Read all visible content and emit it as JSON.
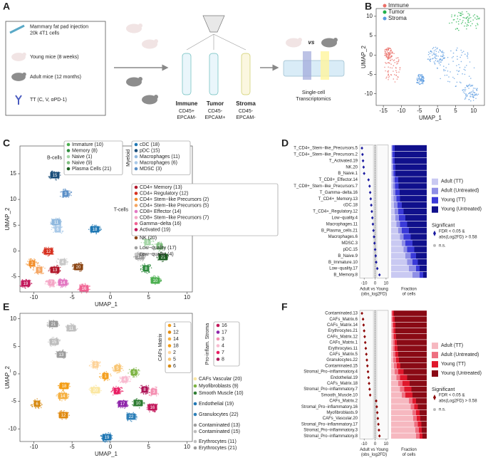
{
  "panel_labels": [
    "A",
    "B",
    "C",
    "D",
    "E",
    "F"
  ],
  "panel_a": {
    "steps": [
      [
        "Mammary fat pad injection",
        "20k 4T1 cells"
      ],
      [
        "Young mice (8 weeks)"
      ],
      [
        "Adult mice (12 months)"
      ],
      [
        "TT (C, V, αPD-1)"
      ]
    ],
    "populations": [
      {
        "name": "Immune",
        "markers": [
          "CD45+",
          "EPCAM-"
        ]
      },
      {
        "name": "Tumor",
        "markers": [
          "CD45-",
          "EPCAM+"
        ]
      },
      {
        "name": "Stroma",
        "markers": [
          "CD45-",
          "EPCAM-"
        ]
      }
    ],
    "vs": "vs",
    "output": [
      "Single-cell",
      "Transcriptomics"
    ]
  },
  "panel_b": {
    "legend": [
      {
        "name": "Immune",
        "color": "#ea6f68"
      },
      {
        "name": "Tumor",
        "color": "#21b24b"
      },
      {
        "name": "Stroma",
        "color": "#5b9be0"
      }
    ],
    "xlabel": "UMAP_1",
    "ylabel": "UMAP_2",
    "xlim": [
      -17,
      13
    ],
    "xticks": [
      -15,
      -10,
      -5,
      0,
      5,
      10
    ],
    "ylim": [
      -13,
      12
    ],
    "yticks": [
      -10,
      -5,
      0,
      5,
      10
    ]
  },
  "panel_c": {
    "xlabel": "UMAP_1",
    "ylabel": "UMAP_2",
    "xlim": [
      -11.8,
      10.7
    ],
    "xticks": [
      -10,
      -5,
      0,
      5,
      10
    ],
    "ylim": [
      -8,
      20.4
    ],
    "yticks": [
      -5,
      0,
      5,
      10,
      15
    ],
    "groups": [
      {
        "name": "B-cells",
        "items": [
          {
            "name": "Immature (10)",
            "color": "#4caf50"
          },
          {
            "name": "Memory (8)",
            "color": "#2e8b3e"
          },
          {
            "name": "Naive (1)",
            "color": "#a5d6a7"
          },
          {
            "name": "Naive (9)",
            "color": "#7fbf7f"
          },
          {
            "name": "Plasma Cells (21)",
            "color": "#1b5e20"
          }
        ]
      },
      {
        "name": "Myeloid",
        "items": [
          {
            "name": "cDC (18)",
            "color": "#1f78b4"
          },
          {
            "name": "pDC (15)",
            "color": "#1a4e7a"
          },
          {
            "name": "Macrophages (11)",
            "color": "#8fb8de"
          },
          {
            "name": "Macrophages (6)",
            "color": "#a9c9e8"
          },
          {
            "name": "MDSC (3)",
            "color": "#5b8fc7"
          }
        ]
      },
      {
        "name": "T-cells",
        "items": [
          {
            "name": "CD4+ Memory (13)",
            "color": "#b2182b"
          },
          {
            "name": "CD4+ Regulatory (12)",
            "color": "#d7301f"
          },
          {
            "name": "CD4+ Stem−like Precursors (2)",
            "color": "#f28e2b"
          },
          {
            "name": "CD4+ Stem−like Precursors (5)",
            "color": "#f4a460"
          },
          {
            "name": "CD8+ Effector (14)",
            "color": "#e377c2"
          },
          {
            "name": "CD8+ Stem−like Precursors (7)",
            "color": "#f4a6c6"
          },
          {
            "name": "Gamma−delta (16)",
            "color": "#f06292"
          },
          {
            "name": "Activated (19)",
            "color": "#c2185b"
          }
        ]
      }
    ],
    "other": [
      {
        "name": "NK (20)",
        "color": "#8b4513"
      },
      {
        "name": "Low−quality (17)",
        "color": "#a0a0a0"
      },
      {
        "name": "Low−quality (4)",
        "color": "#c8c8c8"
      }
    ],
    "cluster_labels": [
      {
        "label": "15",
        "color": "#1a4e7a"
      },
      {
        "label": "3",
        "color": "#5b8fc7"
      },
      {
        "label": "11",
        "color": "#8fb8de"
      },
      {
        "label": "6",
        "color": "#a9c9e8"
      },
      {
        "label": "18",
        "color": "#1f78b4"
      },
      {
        "label": "1",
        "color": "#a5d6a7"
      },
      {
        "label": "9",
        "color": "#7fbf7f"
      },
      {
        "label": "17",
        "color": "#a0a0a0"
      },
      {
        "label": "21",
        "color": "#1b5e20"
      },
      {
        "label": "8",
        "color": "#2e8b3e"
      },
      {
        "label": "10",
        "color": "#4caf50"
      },
      {
        "label": "12",
        "color": "#d7301f"
      },
      {
        "label": "2",
        "color": "#f28e2b"
      },
      {
        "label": "5",
        "color": "#f4a460"
      },
      {
        "label": "4",
        "color": "#c8c8c8"
      },
      {
        "label": "20",
        "color": "#8b4513"
      },
      {
        "label": "13",
        "color": "#b2182b"
      },
      {
        "label": "7",
        "color": "#f4a6c6"
      },
      {
        "label": "14",
        "color": "#e377c2"
      },
      {
        "label": "16",
        "color": "#f06292"
      },
      {
        "label": "19",
        "color": "#c2185b"
      }
    ]
  },
  "panel_d": {
    "rows": [
      "T_CD4+_Stem−like_Precursors.5",
      "T_CD4+_Stem−like_Precursors.2",
      "T_Activated.19",
      "NK.20",
      "B_Naive.1",
      "T_CD8+_Effector.14",
      "T_CD8+_Stem−like_Precursors.7",
      "T_Gamma−delta.16",
      "T_CD4+_Memory.13",
      "cDC.18",
      "T_CD4+_Regulatory.12",
      "Low−quality.4",
      "Macrophages.11",
      "B_Plasma_cells.21",
      "Macrophages.6",
      "MDSC.3",
      "pDC.15",
      "B_Naive.9",
      "B_Immature.10",
      "Low−quality.17",
      "B_Memory.8"
    ],
    "log2fd": [
      -12,
      -11.5,
      -11,
      -10.5,
      -10,
      -6,
      -5,
      -4.5,
      -4,
      -3.5,
      -3,
      -2.5,
      -2,
      -1.5,
      -1,
      -0.5,
      0,
      0.5,
      1,
      2,
      4
    ],
    "fractions": [
      [
        0.02,
        0.02,
        0.06,
        0.9
      ],
      [
        0.02,
        0.02,
        0.06,
        0.9
      ],
      [
        0.02,
        0.03,
        0.05,
        0.9
      ],
      [
        0.03,
        0.03,
        0.06,
        0.88
      ],
      [
        0.03,
        0.04,
        0.05,
        0.88
      ],
      [
        0.05,
        0.05,
        0.1,
        0.8
      ],
      [
        0.05,
        0.06,
        0.1,
        0.79
      ],
      [
        0.06,
        0.06,
        0.12,
        0.76
      ],
      [
        0.07,
        0.08,
        0.1,
        0.75
      ],
      [
        0.08,
        0.1,
        0.12,
        0.7
      ],
      [
        0.1,
        0.1,
        0.15,
        0.65
      ],
      [
        0.12,
        0.1,
        0.18,
        0.6
      ],
      [
        0.15,
        0.1,
        0.2,
        0.55
      ],
      [
        0.2,
        0.1,
        0.2,
        0.5
      ],
      [
        0.25,
        0.1,
        0.2,
        0.45
      ],
      [
        0.3,
        0.1,
        0.2,
        0.4
      ],
      [
        0.35,
        0.1,
        0.2,
        0.35
      ],
      [
        0.4,
        0.15,
        0.15,
        0.3
      ],
      [
        0.45,
        0.15,
        0.15,
        0.25
      ],
      [
        0.5,
        0.2,
        0.1,
        0.2
      ],
      [
        0.6,
        0.2,
        0.1,
        0.1
      ]
    ],
    "xlim": [
      -14,
      12
    ],
    "xticks": [
      -10,
      0,
      10
    ],
    "xlabel": [
      "Adult vs Young",
      "(obs_log2FD)"
    ],
    "fraction_label": [
      "Fraction",
      "of cells"
    ],
    "legend": [
      {
        "name": "Adult (TT)",
        "color": "#c9c9f2"
      },
      {
        "name": "Adult (Untreated)",
        "color": "#8f8fe6"
      },
      {
        "name": "Young (TT)",
        "color": "#3a3ad8"
      },
      {
        "name": "Young (Untreated)",
        "color": "#10108c"
      }
    ],
    "significance_title": "Significant",
    "significant": {
      "label": [
        "FDR < 0.05 &",
        "abs(Log2FD) > 0.58"
      ],
      "color": "#1a1aa0"
    },
    "not_significant": {
      "label": "n.s.",
      "color": "#bbbbbb"
    }
  },
  "panel_e": {
    "xlabel": "UMAP_1",
    "ylabel": "UMAP_2",
    "xlim": [
      -11.8,
      10.7
    ],
    "xticks": [
      -10,
      -5,
      0,
      5,
      10
    ],
    "ylim": [
      -12.3,
      11
    ],
    "yticks": [
      -10,
      -5,
      0,
      5,
      10
    ],
    "groups": [
      {
        "name": "CAFs Matrix",
        "items": [
          {
            "name": "1",
            "color": "#f4a020"
          },
          {
            "name": "12",
            "color": "#e08a10"
          },
          {
            "name": "14",
            "color": "#f5b041"
          },
          {
            "name": "18",
            "color": "#f39c12"
          },
          {
            "name": "2",
            "color": "#fdd39a"
          },
          {
            "name": "5",
            "color": "#f8c471"
          },
          {
            "name": "6",
            "color": "#d68910"
          }
        ]
      },
      {
        "name": "Pro-inflam. Stroma",
        "items": [
          {
            "name": "16",
            "color": "#c2185b"
          },
          {
            "name": "17",
            "color": "#8e24aa"
          },
          {
            "name": "3",
            "color": "#f48fb1"
          },
          {
            "name": "4",
            "color": "#f8bbd0"
          },
          {
            "name": "7",
            "color": "#e91e63"
          },
          {
            "name": "8",
            "color": "#ad1457"
          }
        ]
      }
    ],
    "other": [
      {
        "name": "CAFs Vascular (20)",
        "color": "#fbe7a1"
      },
      {
        "name": "Myofibroblasts (9)",
        "color": "#7cb342"
      },
      {
        "name": "Smooth Muscle (10)",
        "color": "#2e7d32"
      },
      {
        "name": "Endothelial (19)",
        "color": "#1f77b4"
      },
      {
        "name": "Granulocytes (22)",
        "color": "#2c7fb8"
      },
      {
        "name": "Contaminated (13)",
        "color": "#9e9e9e"
      },
      {
        "name": "Contaminated (15)",
        "color": "#bdbdbd"
      },
      {
        "name": "Erythrocytes (11)",
        "color": "#c0c0c0"
      },
      {
        "name": "Erythrocytes (21)",
        "color": "#9a9a9a"
      }
    ],
    "cluster_labels": [
      {
        "label": "21",
        "color": "#9a9a9a"
      },
      {
        "label": "11",
        "color": "#c0c0c0"
      },
      {
        "label": "15",
        "color": "#bdbdbd"
      },
      {
        "label": "13",
        "color": "#9e9e9e"
      },
      {
        "label": "18",
        "color": "#f39c12"
      },
      {
        "label": "6",
        "color": "#d68910"
      },
      {
        "label": "14",
        "color": "#f5b041"
      },
      {
        "label": "12",
        "color": "#e08a10"
      },
      {
        "label": "1",
        "color": "#f4a020"
      },
      {
        "label": "2",
        "color": "#fdd39a"
      },
      {
        "label": "5",
        "color": "#f8c471"
      },
      {
        "label": "9",
        "color": "#7cb342"
      },
      {
        "label": "20",
        "color": "#fbe7a1"
      },
      {
        "label": "4",
        "color": "#f8bbd0"
      },
      {
        "label": "7",
        "color": "#e91e63"
      },
      {
        "label": "8",
        "color": "#ad1457"
      },
      {
        "label": "3",
        "color": "#f48fb1"
      },
      {
        "label": "17",
        "color": "#8e24aa"
      },
      {
        "label": "10",
        "color": "#2e7d32"
      },
      {
        "label": "16",
        "color": "#c2185b"
      },
      {
        "label": "22",
        "color": "#2c7fb8"
      },
      {
        "label": "19",
        "color": "#1f77b4"
      }
    ]
  },
  "panel_f": {
    "rows": [
      "Contaminated.13",
      "CAFs_Matrix.6",
      "CAFs_Matrix.14",
      "Erythrocytes.21",
      "CAFs_Matrix.12",
      "CAFs_Matrix.1",
      "Erythrocytes.11",
      "CAFs_Matrix.5",
      "Granulocytes.22",
      "Contaminated.15",
      "Stromal_Pro−inflammatory.4",
      "Endothelial.19",
      "CAFs_Matrix.18",
      "Stromal_Pro−inflammatory.7",
      "Smooth_Muscle.10",
      "CAFs_Matrix.2",
      "Stromal_Pro−inflammatory.16",
      "Myofibroblasts.9",
      "CAFs_Vascular.20",
      "Stromal_Pro−inflammatory.17",
      "Stromal_Pro−inflammatory.3",
      "Stromal_Pro−inflammatory.8"
    ],
    "log2fd": [
      -12,
      -11,
      -10.5,
      -10,
      -9.5,
      -9,
      -8.5,
      -8,
      -7.5,
      -7,
      -6.5,
      -6,
      -5.5,
      -5,
      -4.5,
      1,
      1.5,
      2,
      2.5,
      3,
      3.5,
      4
    ],
    "fractions": [
      [
        0.02,
        0.02,
        0.04,
        0.92
      ],
      [
        0.02,
        0.03,
        0.05,
        0.9
      ],
      [
        0.03,
        0.03,
        0.06,
        0.88
      ],
      [
        0.03,
        0.04,
        0.05,
        0.88
      ],
      [
        0.04,
        0.04,
        0.06,
        0.86
      ],
      [
        0.05,
        0.05,
        0.06,
        0.84
      ],
      [
        0.05,
        0.05,
        0.08,
        0.82
      ],
      [
        0.06,
        0.06,
        0.08,
        0.8
      ],
      [
        0.06,
        0.08,
        0.08,
        0.78
      ],
      [
        0.08,
        0.08,
        0.1,
        0.74
      ],
      [
        0.1,
        0.1,
        0.15,
        0.65
      ],
      [
        0.15,
        0.1,
        0.2,
        0.55
      ],
      [
        0.2,
        0.12,
        0.2,
        0.48
      ],
      [
        0.25,
        0.12,
        0.2,
        0.43
      ],
      [
        0.3,
        0.1,
        0.2,
        0.4
      ],
      [
        0.5,
        0.1,
        0.1,
        0.3
      ],
      [
        0.55,
        0.1,
        0.1,
        0.25
      ],
      [
        0.6,
        0.1,
        0.1,
        0.2
      ],
      [
        0.62,
        0.1,
        0.1,
        0.18
      ],
      [
        0.65,
        0.1,
        0.1,
        0.15
      ],
      [
        0.68,
        0.1,
        0.08,
        0.14
      ],
      [
        0.7,
        0.1,
        0.08,
        0.12
      ]
    ],
    "xlim": [
      -14,
      12
    ],
    "xticks": [
      -10,
      0,
      10
    ],
    "xlabel": [
      "Adult vs Young",
      "(obs_log2FD)"
    ],
    "fraction_label": [
      "Fraction",
      "of cells"
    ],
    "legend": [
      {
        "name": "Adult (TT)",
        "color": "#f6b8c0"
      },
      {
        "name": "Adult (Untreated)",
        "color": "#ee6f80"
      },
      {
        "name": "Young (TT)",
        "color": "#e0182c"
      },
      {
        "name": "Young (Untreated)",
        "color": "#8a0a15"
      }
    ],
    "significance_title": "Significant",
    "significant": {
      "label": [
        "FDR < 0.05 &",
        "abs(Log2FD) > 0.58"
      ],
      "color": "#8b0000"
    },
    "not_significant": {
      "label": "n.s.",
      "color": "#bbbbbb"
    }
  }
}
